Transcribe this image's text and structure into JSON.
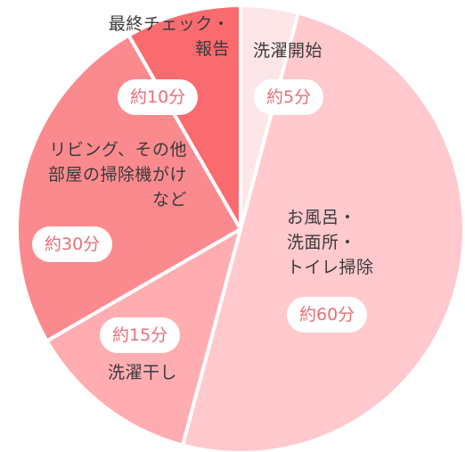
{
  "chart_data": {
    "type": "pie",
    "unit": "分",
    "categories": [
      "洗濯開始",
      "お風呂・洗面所・トイレ掃除",
      "洗濯干し",
      "リビング、その他部屋の掃除機がけなど",
      "最終チェック・報告"
    ],
    "values": [
      5,
      60,
      15,
      30,
      10
    ],
    "slices": [
      {
        "id": "wash-start",
        "label_lines": [
          "洗濯開始"
        ],
        "badge": "約5分",
        "value": 5,
        "color": "#fde6e8"
      },
      {
        "id": "bath-clean",
        "label_lines": [
          "お風呂・",
          "洗面所・",
          "トイレ掃除"
        ],
        "badge": "約60分",
        "value": 60,
        "color": "#ffc9cd"
      },
      {
        "id": "hang-laundry",
        "label_lines": [
          "洗濯干し"
        ],
        "badge": "約15分",
        "value": 15,
        "color": "#ffadb1"
      },
      {
        "id": "vacuum",
        "label_lines": [
          "リビング、その他",
          "部屋の掃除機がけ",
          "など"
        ],
        "badge": "約30分",
        "value": 30,
        "color": "#fb8a8f"
      },
      {
        "id": "final-check",
        "label_lines": [
          "最終チェック・",
          "報告"
        ],
        "badge": "約10分",
        "value": 10,
        "color": "#fa6b6f"
      }
    ]
  }
}
